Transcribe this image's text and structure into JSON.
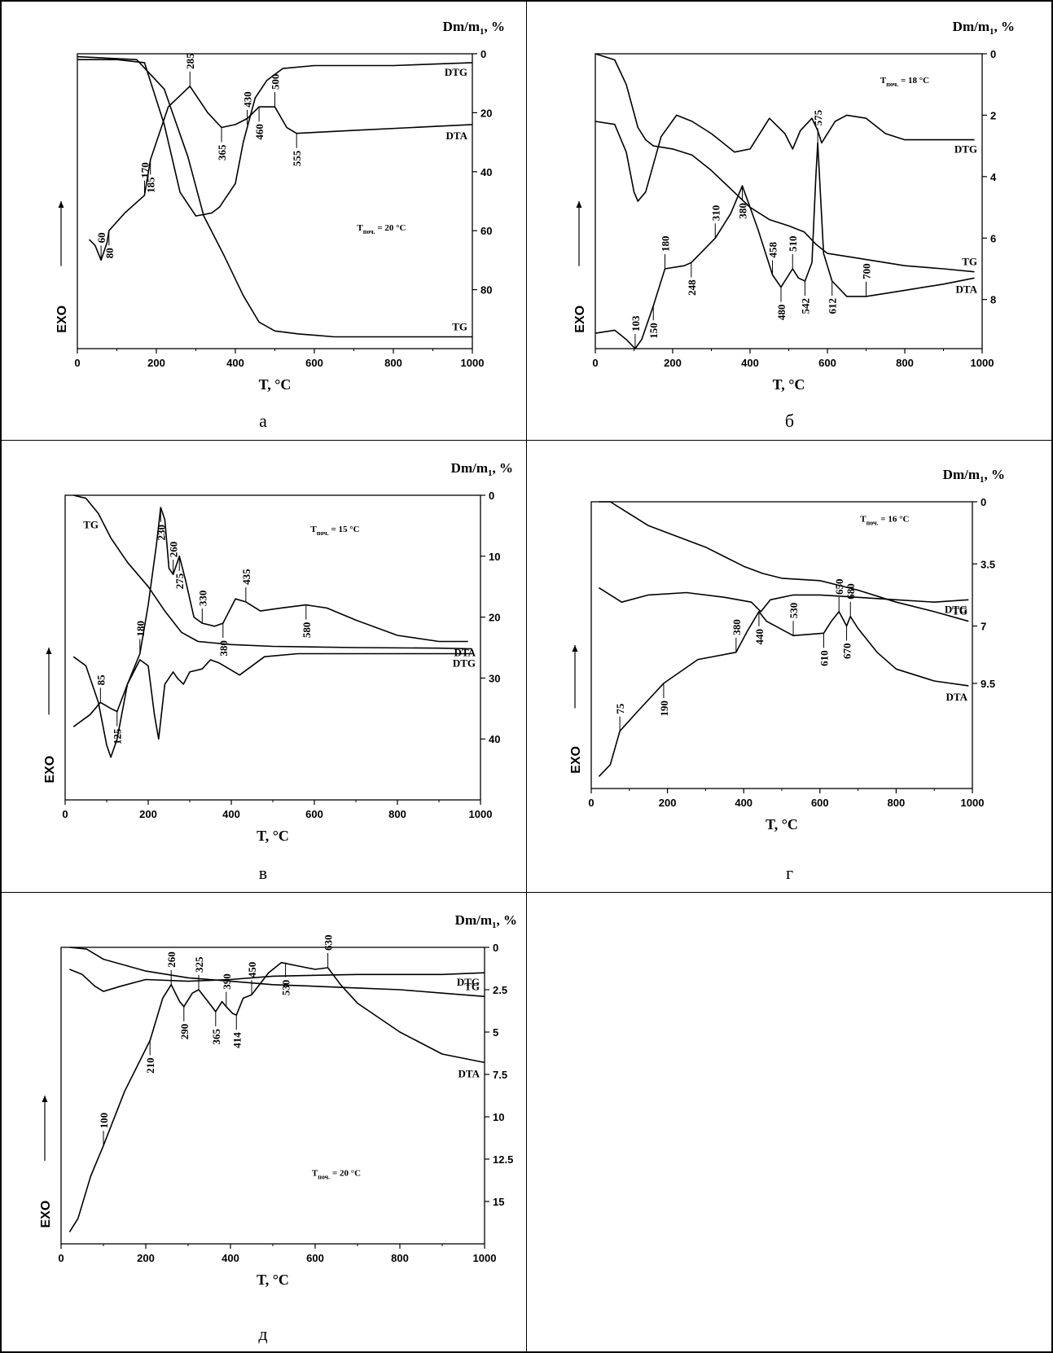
{
  "figure_panels": [
    {
      "letter": "а",
      "temperature_note": "T<sub>поч.</sub> = 20 °C"
    },
    {
      "letter": "б",
      "temperature_note": "T<sub>поч.</sub> = 18 °C"
    },
    {
      "letter": "в",
      "temperature_note": "T<sub>поч.</sub> = 15 °C"
    },
    {
      "letter": "г",
      "temperature_note": "T<sub>поч.</sub> = 16 °C"
    },
    {
      "letter": "д",
      "temperature_note": "T<sub>поч.</sub> = 20 °C"
    }
  ],
  "chart_data": [
    {
      "type": "line",
      "panel": "а",
      "xlabel": "T, °C",
      "ylabel_right": "Dm/m1, %",
      "ylabel_left": "EXO",
      "annotation": "Tпоч. = 20 °C",
      "xlim": [
        0,
        1000
      ],
      "ylim": [
        0,
        100
      ],
      "xticks": [
        0,
        200,
        400,
        600,
        800,
        1000
      ],
      "yticks": [
        0,
        20,
        40,
        60,
        80
      ],
      "series": [
        {
          "name": "TG",
          "x": [
            0,
            150,
            220,
            280,
            320,
            370,
            420,
            460,
            500,
            560,
            650,
            800,
            1000
          ],
          "y": [
            1,
            2,
            12,
            35,
            55,
            68,
            82,
            91,
            94,
            95,
            96,
            96,
            96
          ]
        },
        {
          "name": "DTG",
          "x": [
            0,
            100,
            170,
            220,
            260,
            300,
            340,
            360,
            400,
            420,
            450,
            480,
            520,
            600,
            800,
            1000
          ],
          "y": [
            2,
            2,
            3,
            24,
            47,
            55,
            54,
            52,
            44,
            30,
            15,
            9,
            5,
            4,
            4,
            3
          ]
        },
        {
          "name": "DTA",
          "x": [
            30,
            45,
            60,
            75,
            80,
            120,
            170,
            185,
            230,
            285,
            330,
            365,
            400,
            430,
            460,
            500,
            530,
            555,
            700,
            850,
            1000
          ],
          "y": [
            63,
            65,
            70,
            64,
            60,
            54,
            48,
            36,
            18,
            11,
            20,
            25,
            24,
            22,
            18,
            18,
            25,
            27,
            26,
            25,
            24
          ]
        }
      ],
      "peak_labels": [
        "60",
        "80",
        "170",
        "185",
        "285",
        "365",
        "430",
        "460",
        "500",
        "555"
      ],
      "peak_x": [
        60,
        80,
        170,
        185,
        285,
        365,
        430,
        460,
        500,
        555
      ],
      "peak_y": [
        70,
        60,
        48,
        36,
        11,
        25,
        24,
        18,
        18,
        27
      ]
    },
    {
      "type": "line",
      "panel": "б",
      "xlabel": "T, °C",
      "ylabel_right": "Dm/m1, %",
      "ylabel_left": "EXO",
      "annotation": "Tпоч. = 18 °C",
      "xlim": [
        0,
        1000
      ],
      "ylim": [
        0,
        9.6
      ],
      "xticks": [
        0,
        200,
        400,
        600,
        800,
        1000
      ],
      "yticks": [
        0,
        2,
        4,
        6,
        8
      ],
      "series": [
        {
          "name": "DTG",
          "x": [
            0,
            50,
            80,
            100,
            110,
            130,
            170,
            210,
            250,
            300,
            360,
            400,
            450,
            490,
            510,
            530,
            560,
            575,
            585,
            620,
            650,
            700,
            750,
            800,
            900,
            980
          ],
          "y": [
            2.2,
            2.3,
            3.2,
            4.5,
            4.8,
            4.5,
            2.7,
            2.0,
            2.2,
            2.6,
            3.2,
            3.1,
            2.1,
            2.6,
            3.1,
            2.5,
            2.1,
            2.5,
            2.9,
            2.2,
            2.0,
            2.1,
            2.6,
            2.8,
            2.8,
            2.8
          ]
        },
        {
          "name": "TG",
          "x": [
            0,
            50,
            80,
            110,
            130,
            150,
            200,
            250,
            300,
            350,
            400,
            450,
            500,
            540,
            570,
            600,
            700,
            800,
            900,
            980
          ],
          "y": [
            0,
            0.2,
            1.0,
            2.4,
            2.8,
            3.0,
            3.1,
            3.3,
            3.8,
            4.4,
            5.0,
            5.4,
            5.6,
            5.8,
            6.2,
            6.5,
            6.7,
            6.9,
            7.0,
            7.1
          ]
        },
        {
          "name": "DTA",
          "x": [
            0,
            50,
            80,
            103,
            120,
            150,
            180,
            230,
            248,
            310,
            350,
            380,
            420,
            458,
            480,
            500,
            510,
            525,
            542,
            560,
            570,
            575,
            590,
            612,
            650,
            700,
            800,
            900,
            980
          ],
          "y": [
            9.1,
            9.0,
            9.3,
            9.6,
            9.3,
            8.2,
            7.0,
            6.9,
            6.8,
            6.0,
            5.2,
            4.3,
            5.7,
            7.2,
            7.6,
            7.2,
            7.0,
            7.3,
            7.4,
            6.8,
            4.0,
            2.9,
            6.5,
            7.4,
            7.9,
            7.9,
            7.7,
            7.5,
            7.3
          ]
        }
      ],
      "peak_labels": [
        "103",
        "150",
        "180",
        "248",
        "310",
        "380",
        "458",
        "480",
        "510",
        "542",
        "575",
        "612",
        "700"
      ],
      "peak_x": [
        103,
        150,
        180,
        248,
        310,
        380,
        458,
        480,
        510,
        542,
        575,
        612,
        700
      ],
      "peak_y": [
        9.6,
        8.2,
        7.0,
        6.8,
        6.0,
        4.3,
        7.2,
        7.6,
        7.0,
        7.4,
        2.9,
        7.4,
        7.9
      ]
    },
    {
      "type": "line",
      "panel": "в",
      "xlabel": "T, °C",
      "ylabel_right": "Dm/m1, %",
      "ylabel_left": "EXO",
      "annotation": "Tпоч. = 15 °C",
      "xlim": [
        0,
        1000
      ],
      "ylim": [
        0,
        50
      ],
      "xticks": [
        0,
        200,
        400,
        600,
        800,
        1000
      ],
      "yticks": [
        0,
        10,
        20,
        30,
        40
      ],
      "series": [
        {
          "name": "TG",
          "x": [
            20,
            50,
            80,
            110,
            150,
            200,
            240,
            280,
            320,
            400,
            500,
            700,
            900,
            980
          ],
          "y": [
            0,
            0.5,
            3,
            7,
            11,
            15,
            19,
            22.5,
            24,
            24.5,
            24.8,
            25.0,
            25.1,
            25.2
          ]
        },
        {
          "name": "DTA",
          "x": [
            20,
            60,
            85,
            110,
            125,
            150,
            180,
            200,
            220,
            230,
            240,
            250,
            260,
            275,
            290,
            310,
            330,
            360,
            380,
            410,
            435,
            470,
            520,
            580,
            630,
            700,
            800,
            900,
            970
          ],
          "y": [
            38,
            36,
            34,
            35,
            35.5,
            31,
            26,
            18,
            8,
            2,
            4,
            12,
            13,
            10,
            14,
            20,
            21,
            21.5,
            21,
            17,
            17.5,
            19,
            18.5,
            18,
            18.5,
            20.5,
            23,
            24,
            24
          ]
        },
        {
          "name": "DTG",
          "x": [
            20,
            50,
            80,
            100,
            110,
            125,
            150,
            180,
            200,
            215,
            225,
            240,
            260,
            270,
            285,
            300,
            330,
            350,
            370,
            420,
            480,
            560,
            700,
            980
          ],
          "y": [
            26.5,
            28,
            34,
            41,
            43,
            40,
            31,
            27,
            28,
            36,
            40,
            31,
            29,
            30,
            31,
            29,
            28.5,
            27,
            27.5,
            29.5,
            26.5,
            26,
            26,
            26
          ]
        }
      ],
      "peak_labels": [
        "85",
        "125",
        "180",
        "230",
        "260",
        "275",
        "330",
        "380",
        "435",
        "580"
      ],
      "peak_x": [
        85,
        125,
        180,
        230,
        260,
        275,
        330,
        380,
        435,
        580
      ],
      "peak_y": [
        34,
        35.5,
        26,
        2,
        13,
        10,
        21,
        21,
        17.5,
        18
      ]
    },
    {
      "type": "line",
      "panel": "г",
      "xlabel": "T, °C",
      "ylabel_right": "Dm/m1, %",
      "ylabel_left": "EXO",
      "annotation": "Tпоч. = 16 °C",
      "xlim": [
        0,
        1000
      ],
      "ylim": [
        0,
        12
      ],
      "xticks": [
        0,
        200,
        400,
        600,
        800,
        1000
      ],
      "yticks": [
        0,
        3.5,
        7,
        9.5
      ],
      "ytick_positions": [
        0,
        2.6,
        5.2,
        7.6
      ],
      "series": [
        {
          "name": "TG",
          "x": [
            20,
            50,
            100,
            150,
            200,
            300,
            400,
            450,
            500,
            600,
            700,
            800,
            900,
            990
          ],
          "y": [
            0,
            0,
            0.5,
            1.0,
            1.3,
            1.9,
            2.7,
            3.0,
            3.2,
            3.3,
            3.7,
            4.2,
            4.6,
            5.0
          ]
        },
        {
          "name": "DTG",
          "x": [
            20,
            80,
            150,
            250,
            350,
            420,
            445,
            470,
            530,
            600,
            700,
            800,
            900,
            990
          ],
          "y": [
            3.6,
            4.2,
            3.9,
            3.8,
            4.0,
            4.2,
            4.6,
            4.1,
            3.9,
            3.9,
            4.0,
            4.1,
            4.2,
            4.1
          ]
        },
        {
          "name": "DTA",
          "x": [
            20,
            50,
            75,
            120,
            190,
            280,
            380,
            410,
            440,
            460,
            530,
            610,
            630,
            650,
            670,
            680,
            700,
            750,
            800,
            900,
            990
          ],
          "y": [
            11.5,
            11,
            9.6,
            8.8,
            7.6,
            6.6,
            6.3,
            5.4,
            4.6,
            5.0,
            5.6,
            5.5,
            5.0,
            4.6,
            5.2,
            4.8,
            5.3,
            6.3,
            7.0,
            7.5,
            7.7
          ]
        }
      ],
      "peak_labels": [
        "75",
        "190",
        "380",
        "440",
        "530",
        "610",
        "650",
        "670",
        "680"
      ],
      "peak_x": [
        75,
        190,
        380,
        440,
        530,
        610,
        650,
        670,
        680
      ],
      "peak_y": [
        9.6,
        7.6,
        6.3,
        4.6,
        5.6,
        5.5,
        4.6,
        5.2,
        4.8
      ]
    },
    {
      "type": "line",
      "panel": "д",
      "xlabel": "T, °C",
      "ylabel_right": "Dm/m1, %",
      "ylabel_left": "EXO",
      "annotation": "Tпоч. = 20 °C",
      "xlim": [
        0,
        1000
      ],
      "ylim": [
        0,
        17.5
      ],
      "xticks": [
        0,
        200,
        400,
        600,
        800,
        1000
      ],
      "yticks": [
        0,
        2.5,
        5,
        7.5,
        10,
        12.5,
        15
      ],
      "series": [
        {
          "name": "DTG",
          "x": [
            20,
            50,
            80,
            100,
            140,
            200,
            300,
            400,
            500,
            700,
            900,
            1000
          ],
          "y": [
            1.3,
            1.6,
            2.3,
            2.6,
            2.3,
            1.9,
            2.0,
            1.9,
            1.7,
            1.6,
            1.6,
            1.5
          ]
        },
        {
          "name": "TG",
          "x": [
            20,
            60,
            100,
            200,
            300,
            400,
            500,
            600,
            700,
            800,
            900,
            1000
          ],
          "y": [
            0,
            0.1,
            0.7,
            1.4,
            1.8,
            2.0,
            2.2,
            2.3,
            2.4,
            2.5,
            2.7,
            2.9
          ]
        },
        {
          "name": "DTA",
          "x": [
            20,
            40,
            70,
            100,
            150,
            210,
            240,
            260,
            280,
            290,
            310,
            325,
            350,
            365,
            380,
            390,
            405,
            414,
            430,
            450,
            490,
            520,
            560,
            600,
            630,
            660,
            700,
            800,
            900,
            1000
          ],
          "y": [
            16.8,
            16,
            13.5,
            11.7,
            8.5,
            5.5,
            3.0,
            2.2,
            3.2,
            3.5,
            2.7,
            2.5,
            3.3,
            3.8,
            3.2,
            3.5,
            3.9,
            4.0,
            3.0,
            2.8,
            1.5,
            0.9,
            1.1,
            1.3,
            1.2,
            2.2,
            3.3,
            5.0,
            6.3,
            6.8
          ]
        }
      ],
      "peak_labels": [
        "100",
        "210",
        "260",
        "290",
        "325",
        "365",
        "390",
        "414",
        "450",
        "530",
        "630"
      ],
      "peak_x": [
        100,
        210,
        260,
        290,
        325,
        365,
        390,
        414,
        450,
        530,
        630
      ],
      "peak_y": [
        11.7,
        5.5,
        2.2,
        3.5,
        2.5,
        3.8,
        3.5,
        4.0,
        2.8,
        0.9,
        1.2
      ]
    }
  ]
}
